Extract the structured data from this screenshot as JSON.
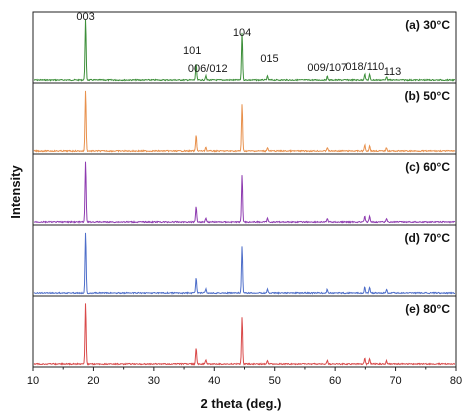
{
  "chart_data": {
    "type": "line",
    "title": "",
    "xlabel": "2 theta (deg.)",
    "ylabel": "Intensity",
    "xlim": [
      10,
      80
    ],
    "x_ticks": [
      "10",
      "20",
      "30",
      "40",
      "50",
      "60",
      "70",
      "80"
    ],
    "layout": "stacked-panels",
    "grid": false,
    "legend": "none",
    "series": [
      {
        "label": "(a) 30°C",
        "color": "#3d8f3a"
      },
      {
        "label": "(b) 50°C",
        "color": "#e8914d"
      },
      {
        "label": "(c) 60°C",
        "color": "#8e3bb0"
      },
      {
        "label": "(d) 70°C",
        "color": "#4e6ec9"
      },
      {
        "label": "(e) 80°C",
        "color": "#d94a4a"
      }
    ],
    "peaks": [
      {
        "label": "003",
        "x": 18.7,
        "rel": 1.0
      },
      {
        "label": "101",
        "x": 37.0,
        "rel": 0.26
      },
      {
        "label": "006/012",
        "x": 38.6,
        "rel": 0.07
      },
      {
        "label": "104",
        "x": 44.6,
        "rel": 0.78
      },
      {
        "label": "015",
        "x": 48.8,
        "rel": 0.06
      },
      {
        "label": "009/107",
        "x": 58.7,
        "rel": 0.06
      },
      {
        "label": "018/110",
        "x": 64.9,
        "rel": 0.1
      },
      {
        "label": "",
        "x": 65.7,
        "rel": 0.09
      },
      {
        "label": "113",
        "x": 68.5,
        "rel": 0.06
      }
    ]
  }
}
